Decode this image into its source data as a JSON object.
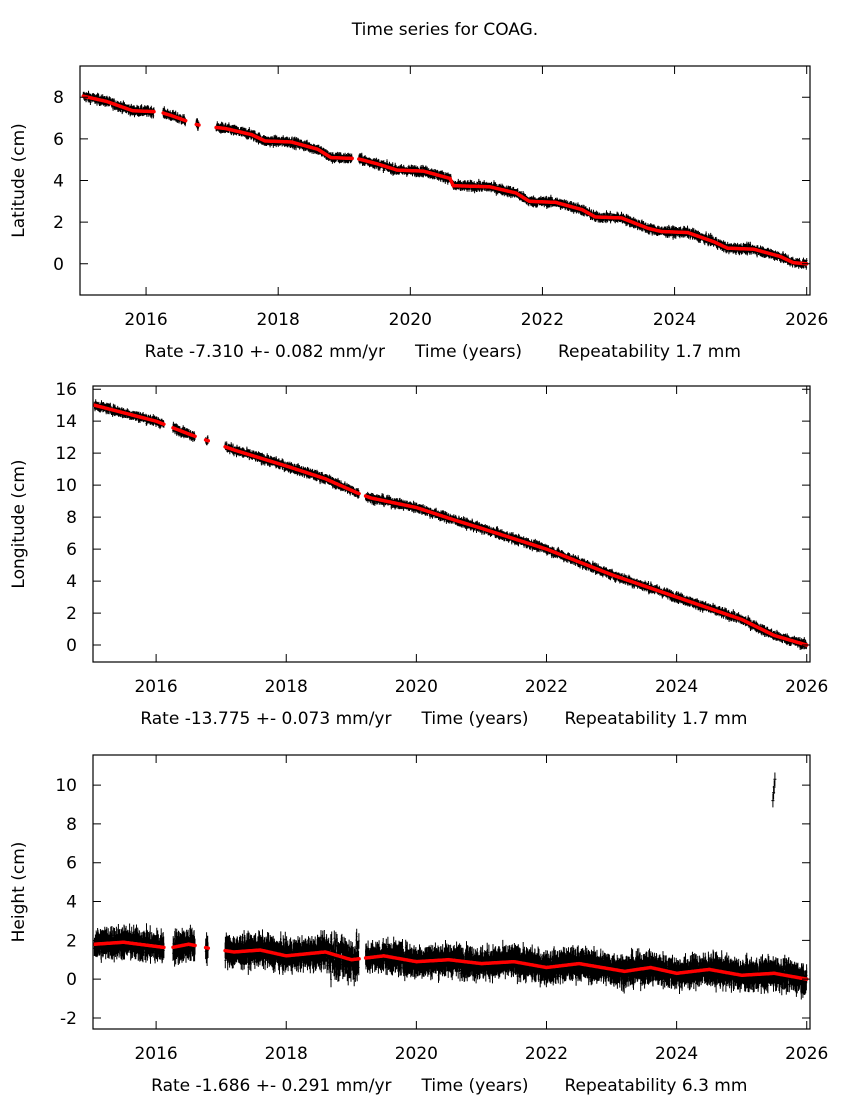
{
  "title": "Time series for COAG.",
  "chart_data": [
    {
      "type": "scatter",
      "ylabel": "Latitude (cm)",
      "xlabel": "Time (years)",
      "rate_text": "Rate -7.310 +- 0.082 mm/yr",
      "repeatability_text": "Repeatability 1.7 mm",
      "xlim": [
        2015.0,
        2026.05
      ],
      "ylim": [
        -1.5,
        9.5
      ],
      "xticks": [
        2016,
        2018,
        2020,
        2022,
        2024,
        2026
      ],
      "yticks": [
        0,
        2,
        4,
        6,
        8
      ],
      "grid": false,
      "observation_color": "#000000",
      "fit_color": "#ff0000",
      "segments": [
        [
          2015.05,
          2016.12
        ],
        [
          2016.26,
          2016.6
        ],
        [
          2016.76,
          2016.8
        ],
        [
          2017.06,
          2019.12
        ],
        [
          2019.22,
          2026.0
        ]
      ],
      "fit": [
        [
          2015.05,
          8.05
        ],
        [
          2015.4,
          7.8
        ],
        [
          2015.8,
          7.35
        ],
        [
          2016.2,
          7.3
        ],
        [
          2016.4,
          7.1
        ],
        [
          2016.75,
          6.7
        ],
        [
          2016.9,
          6.6
        ],
        [
          2017.2,
          6.5
        ],
        [
          2017.6,
          6.2
        ],
        [
          2017.8,
          5.9
        ],
        [
          2018.2,
          5.85
        ],
        [
          2018.6,
          5.5
        ],
        [
          2018.8,
          5.1
        ],
        [
          2019.2,
          5.05
        ],
        [
          2019.5,
          4.8
        ],
        [
          2019.8,
          4.5
        ],
        [
          2020.2,
          4.45
        ],
        [
          2020.6,
          4.1
        ],
        [
          2020.65,
          3.75
        ],
        [
          2021.2,
          3.7
        ],
        [
          2021.6,
          3.4
        ],
        [
          2021.8,
          3.0
        ],
        [
          2022.2,
          2.95
        ],
        [
          2022.6,
          2.6
        ],
        [
          2022.8,
          2.25
        ],
        [
          2023.2,
          2.2
        ],
        [
          2023.6,
          1.7
        ],
        [
          2023.8,
          1.55
        ],
        [
          2024.2,
          1.5
        ],
        [
          2024.6,
          1.05
        ],
        [
          2024.8,
          0.75
        ],
        [
          2025.2,
          0.7
        ],
        [
          2025.6,
          0.35
        ],
        [
          2025.8,
          0.05
        ],
        [
          2026.0,
          0.0
        ]
      ],
      "outliers": []
    },
    {
      "type": "scatter",
      "ylabel": "Longitude (cm)",
      "xlabel": "Time (years)",
      "rate_text": "Rate -13.775 +- 0.073 mm/yr",
      "repeatability_text": "Repeatability 1.7 mm",
      "xlim": [
        2015.03,
        2026.05
      ],
      "ylim": [
        -1.06,
        16.2
      ],
      "xticks": [
        2016,
        2018,
        2020,
        2022,
        2024,
        2026
      ],
      "yticks": [
        0,
        2,
        4,
        6,
        8,
        10,
        12,
        14,
        16
      ],
      "grid": false,
      "observation_color": "#000000",
      "fit_color": "#ff0000",
      "segments": [
        [
          2015.05,
          2016.12
        ],
        [
          2016.26,
          2016.6
        ],
        [
          2016.76,
          2016.8
        ],
        [
          2017.06,
          2019.12
        ],
        [
          2019.22,
          2026.0
        ]
      ],
      "fit": [
        [
          2015.05,
          15.0
        ],
        [
          2016.0,
          14.0
        ],
        [
          2016.5,
          13.2
        ],
        [
          2017.2,
          12.2
        ],
        [
          2018.0,
          11.2
        ],
        [
          2018.6,
          10.4
        ],
        [
          2019.1,
          9.5
        ],
        [
          2019.3,
          9.2
        ],
        [
          2020.0,
          8.6
        ],
        [
          2020.6,
          7.8
        ],
        [
          2021.0,
          7.3
        ],
        [
          2022.0,
          6.0
        ],
        [
          2023.0,
          4.4
        ],
        [
          2024.0,
          3.0
        ],
        [
          2025.0,
          1.6
        ],
        [
          2025.5,
          0.6
        ],
        [
          2026.0,
          0.0
        ]
      ],
      "outliers": []
    },
    {
      "type": "scatter",
      "ylabel": "Height (cm)",
      "xlabel": "Time (years)",
      "rate_text": "Rate -1.686 +- 0.291 mm/yr",
      "repeatability_text": "Repeatability 6.3 mm",
      "xlim": [
        2015.03,
        2026.05
      ],
      "ylim": [
        -2.57,
        11.55
      ],
      "xticks": [
        2016,
        2018,
        2020,
        2022,
        2024,
        2026
      ],
      "yticks": [
        -2,
        0,
        2,
        4,
        6,
        8,
        10
      ],
      "grid": false,
      "observation_color": "#000000",
      "fit_color": "#ff0000",
      "segments": [
        [
          2015.05,
          2016.12
        ],
        [
          2016.26,
          2016.6
        ],
        [
          2016.76,
          2016.8
        ],
        [
          2017.06,
          2019.12
        ],
        [
          2019.22,
          2026.0
        ]
      ],
      "fit": [
        [
          2015.05,
          1.8
        ],
        [
          2015.5,
          1.9
        ],
        [
          2016.2,
          1.6
        ],
        [
          2016.5,
          1.8
        ],
        [
          2016.8,
          1.6
        ],
        [
          2017.2,
          1.4
        ],
        [
          2017.6,
          1.5
        ],
        [
          2018.0,
          1.2
        ],
        [
          2018.6,
          1.4
        ],
        [
          2019.0,
          1.0
        ],
        [
          2019.5,
          1.2
        ],
        [
          2020.0,
          0.9
        ],
        [
          2020.5,
          1.0
        ],
        [
          2021.0,
          0.8
        ],
        [
          2021.5,
          0.9
        ],
        [
          2022.0,
          0.6
        ],
        [
          2022.5,
          0.8
        ],
        [
          2023.2,
          0.4
        ],
        [
          2023.6,
          0.6
        ],
        [
          2024.0,
          0.3
        ],
        [
          2024.5,
          0.5
        ],
        [
          2025.0,
          0.2
        ],
        [
          2025.5,
          0.3
        ],
        [
          2026.0,
          0.0
        ]
      ],
      "outliers": [
        [
          2025.48,
          9.2
        ],
        [
          2025.49,
          9.6
        ],
        [
          2025.5,
          9.9
        ],
        [
          2025.51,
          10.3
        ]
      ]
    }
  ]
}
